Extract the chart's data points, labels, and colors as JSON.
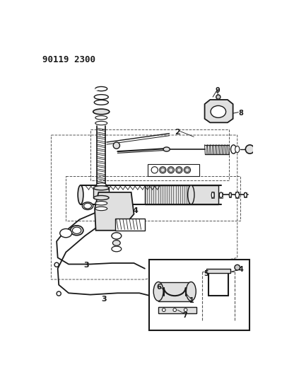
{
  "title": "90119 2300",
  "title_fontsize": 9,
  "title_fontweight": "bold",
  "bg_color": "#ffffff",
  "fig_width": 3.99,
  "fig_height": 5.33,
  "dpi": 100,
  "line_color": "#1a1a1a",
  "gray_fill": "#c8c8c8",
  "light_gray": "#e0e0e0",
  "dashed_color": "#555555",
  "label_fontsize": 7
}
